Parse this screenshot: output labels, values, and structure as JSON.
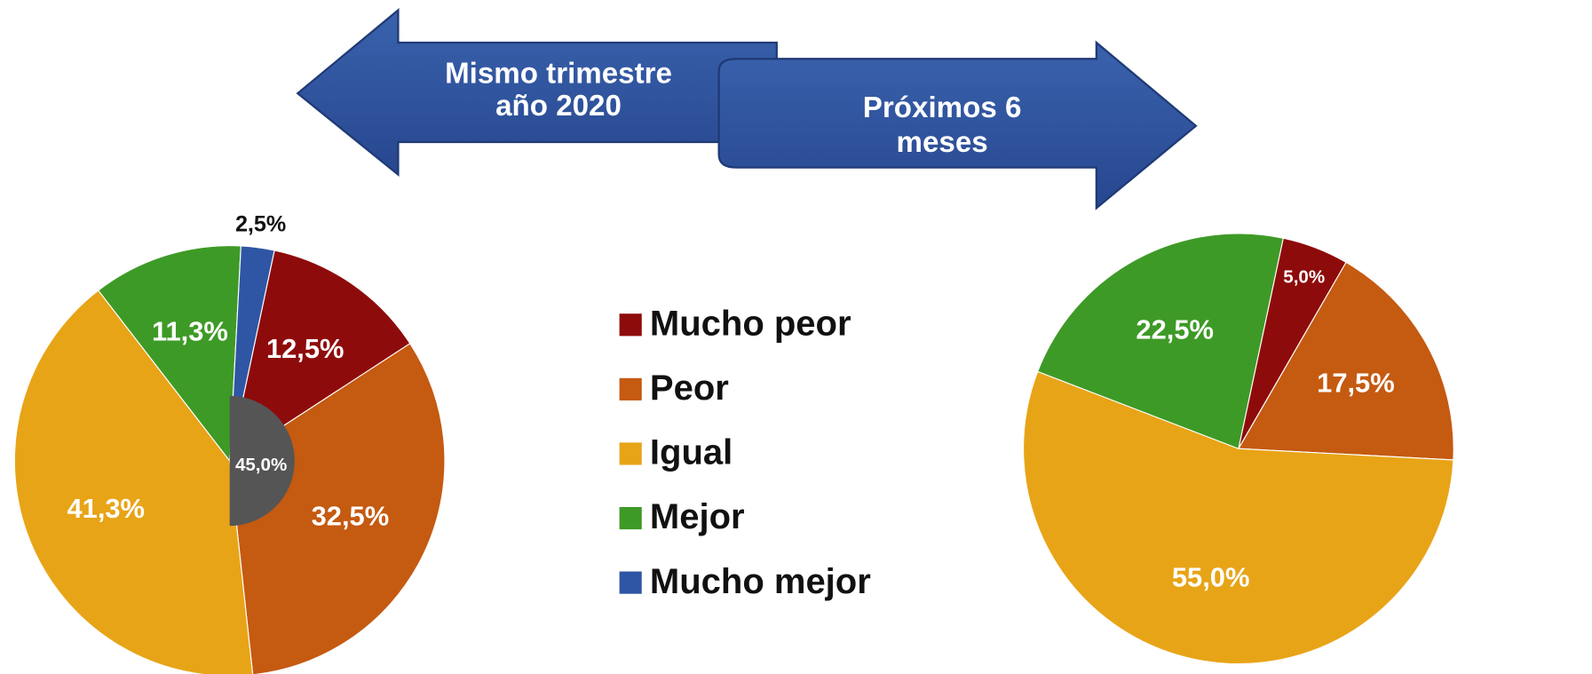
{
  "arrows": [
    {
      "lines": [
        "Mismo trimestre",
        "año 2020"
      ]
    },
    {
      "lines": [
        "Próximos 6",
        "meses"
      ]
    }
  ],
  "chart_data": [
    {
      "type": "pie",
      "categories": [
        "Mucho peor",
        "Peor",
        "Igual",
        "Mejor",
        "Mucho mejor"
      ],
      "colors": [
        "#8e0b0b",
        "#c55a11",
        "#e8a417",
        "#3e9a26",
        "#2f56a4"
      ],
      "values": [
        12.5,
        32.5,
        41.3,
        11.3,
        2.5
      ],
      "value_labels": [
        "12,5%",
        "32,5%",
        "41,3%",
        "11,3%",
        "2,5%"
      ],
      "annotation": "45,0%",
      "legend": true
    },
    {
      "type": "pie",
      "categories": [
        "Mucho peor",
        "Peor",
        "Igual",
        "Mejor",
        "Mucho mejor"
      ],
      "colors": [
        "#8e0b0b",
        "#c55a11",
        "#e8a417",
        "#3e9a26",
        "#2f56a4"
      ],
      "values": [
        5.0,
        17.5,
        55.0,
        22.5,
        0
      ],
      "value_labels": [
        "5,0%",
        "17,5%",
        "55,0%",
        "22,5%",
        null
      ],
      "legend": false
    }
  ]
}
